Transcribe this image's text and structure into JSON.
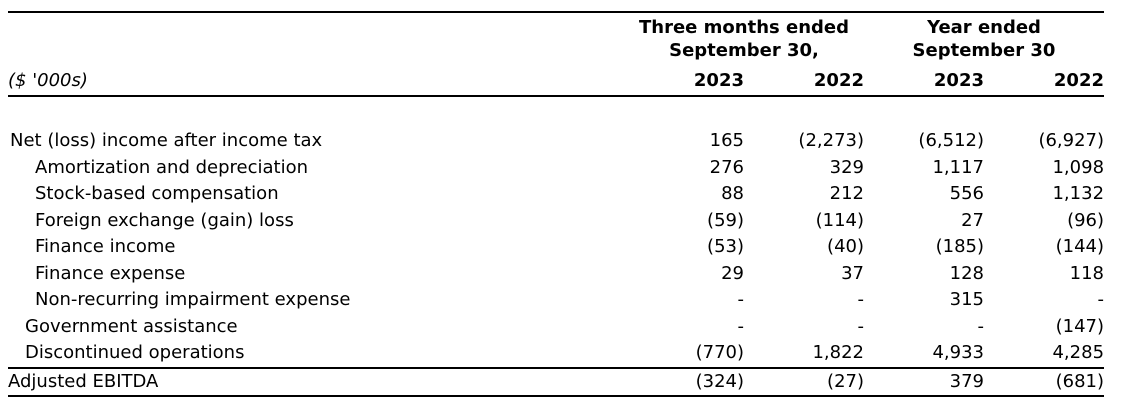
{
  "colors": {
    "text": "#000000",
    "background": "#ffffff",
    "rule": "#000000"
  },
  "table": {
    "header": {
      "unit_label": "($ '000s)",
      "groups": [
        {
          "line1": "Three months ended",
          "line2": "September 30,",
          "years": [
            "2023",
            "2022"
          ]
        },
        {
          "line1": "Year ended",
          "line2": "September 30",
          "years": [
            "2023",
            "2022"
          ]
        }
      ]
    },
    "rows": [
      {
        "label": "Net (loss) income after income tax",
        "indent": 0,
        "values": [
          "165",
          "(2,273)",
          "(6,512)",
          "(6,927)"
        ]
      },
      {
        "label": "Amortization and depreciation",
        "indent": 2,
        "values": [
          "276",
          "329",
          "1,117",
          "1,098"
        ]
      },
      {
        "label": "Stock-based compensation",
        "indent": 2,
        "values": [
          "88",
          "212",
          "556",
          "1,132"
        ]
      },
      {
        "label": "Foreign exchange (gain) loss",
        "indent": 2,
        "values": [
          "(59)",
          "(114)",
          "27",
          "(96)"
        ]
      },
      {
        "label": "Finance income",
        "indent": 2,
        "values": [
          "(53)",
          "(40)",
          "(185)",
          "(144)"
        ]
      },
      {
        "label": "Finance expense",
        "indent": 2,
        "values": [
          "29",
          "37",
          "128",
          "118"
        ]
      },
      {
        "label": "Non-recurring impairment expense",
        "indent": 2,
        "values": [
          "-",
          "-",
          "315",
          "-"
        ]
      },
      {
        "label": "Government assistance",
        "indent": 1,
        "values": [
          "-",
          "-",
          "-",
          "(147)"
        ]
      },
      {
        "label": "Discontinued operations",
        "indent": 1,
        "values": [
          "(770)",
          "1,822",
          "4,933",
          "4,285"
        ]
      }
    ],
    "total_row": {
      "label": "Adjusted EBITDA",
      "values": [
        "(324)",
        "(27)",
        "379",
        "(681)"
      ]
    }
  }
}
